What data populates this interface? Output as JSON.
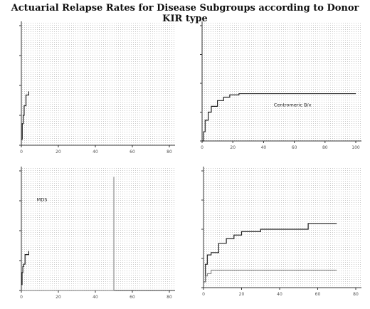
{
  "title": "Actuarial Relapse Rates for Disease Subgroups according to Donor KIR type",
  "chart_data": [
    {
      "type": "line",
      "xlabel": "",
      "ylabel": "",
      "xticks": [
        "0",
        "20",
        "40",
        "60",
        "80"
      ],
      "yticks": [
        "",
        "",
        "",
        "",
        ""
      ],
      "labels": [
        "",
        "",
        ""
      ],
      "series": [
        {
          "values": [
            [
              0,
              0.05
            ],
            [
              0.5,
              0.18
            ],
            [
              1,
              0.25
            ],
            [
              1.5,
              0.33
            ],
            [
              2.5,
              0.42
            ],
            [
              4,
              0.45
            ]
          ]
        }
      ]
    },
    {
      "type": "line",
      "xlabel": "",
      "ylabel": "",
      "xticks": [
        "0",
        "20",
        "40",
        "60",
        "80",
        "100"
      ],
      "yticks": [
        "",
        "",
        "",
        "",
        ""
      ],
      "labels": [
        "",
        "",
        "Centromeric B/x",
        ""
      ],
      "series": [
        {
          "values": [
            [
              0,
              0.0
            ],
            [
              1,
              0.08
            ],
            [
              2,
              0.18
            ],
            [
              4,
              0.25
            ],
            [
              6,
              0.3
            ],
            [
              10,
              0.35
            ],
            [
              14,
              0.38
            ],
            [
              18,
              0.4
            ],
            [
              24,
              0.41
            ],
            [
              100,
              0.41
            ]
          ]
        }
      ]
    },
    {
      "type": "line",
      "xlabel": "",
      "ylabel": "",
      "xticks": [
        "0",
        "20",
        "40",
        "60",
        "80"
      ],
      "yticks": [
        "",
        "",
        "",
        "",
        ""
      ],
      "labels": [
        "MDS",
        "",
        "",
        ""
      ],
      "series": [
        {
          "values": [
            [
              0,
              0.05
            ],
            [
              0.4,
              0.15
            ],
            [
              0.8,
              0.2
            ],
            [
              1.2,
              0.22
            ],
            [
              2,
              0.3
            ],
            [
              4,
              0.33
            ]
          ]
        },
        {
          "values": [
            [
              0,
              0.0
            ],
            [
              20,
              0.0
            ],
            [
              50,
              0.5
            ],
            [
              50,
              0.95
            ]
          ]
        }
      ]
    },
    {
      "type": "line",
      "xlabel": "",
      "ylabel": "",
      "xticks": [
        "0",
        "20",
        "40",
        "60",
        "80"
      ],
      "yticks": [
        "",
        "",
        "",
        "",
        ""
      ],
      "labels": [
        "",
        ""
      ],
      "series": [
        {
          "values": [
            [
              0,
              0.05
            ],
            [
              1,
              0.2
            ],
            [
              2,
              0.28
            ],
            [
              4,
              0.3
            ],
            [
              8,
              0.38
            ],
            [
              12,
              0.42
            ],
            [
              16,
              0.45
            ],
            [
              20,
              0.48
            ],
            [
              30,
              0.5
            ],
            [
              55,
              0.55
            ],
            [
              70,
              0.55
            ]
          ]
        },
        {
          "values": [
            [
              0,
              0.05
            ],
            [
              1,
              0.1
            ],
            [
              2,
              0.12
            ],
            [
              4,
              0.15
            ],
            [
              70,
              0.15
            ]
          ]
        }
      ]
    }
  ]
}
